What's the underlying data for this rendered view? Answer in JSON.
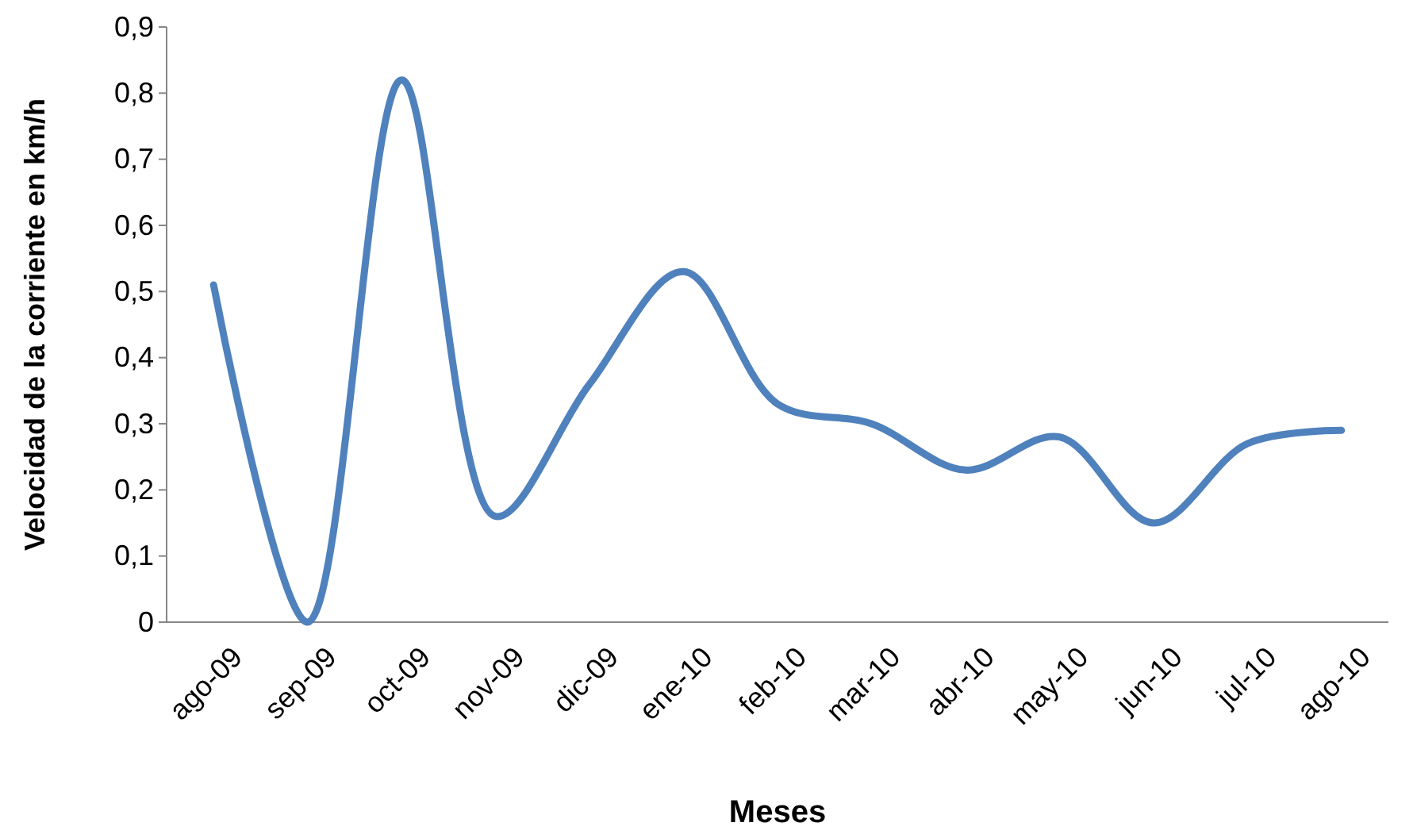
{
  "chart_data": {
    "type": "line",
    "xlabel": "Meses",
    "ylabel": "Velocidad de la corriente en km/h",
    "categories": [
      "ago-09",
      "sep-09",
      "oct-09",
      "nov-09",
      "dic-09",
      "ene-10",
      "feb-10",
      "mar-10",
      "abr-10",
      "may-10",
      "jun-10",
      "jul-10",
      "ago-10"
    ],
    "series": [
      {
        "color": "#4f81bd",
        "values": [
          0.51,
          0,
          0.82,
          0.16,
          0.36,
          0.53,
          0.33,
          0.3,
          0.23,
          0.28,
          0.15,
          0.27,
          0.29
        ]
      }
    ],
    "ylim": [
      0,
      0.9
    ],
    "yticks": [
      {
        "value": 0,
        "label": "0"
      },
      {
        "value": 0.1,
        "label": "0,1"
      },
      {
        "value": 0.2,
        "label": "0,2"
      },
      {
        "value": 0.3,
        "label": "0,3"
      },
      {
        "value": 0.4,
        "label": "0,4"
      },
      {
        "value": 0.5,
        "label": "0,5"
      },
      {
        "value": 0.6,
        "label": "0,6"
      },
      {
        "value": 0.7,
        "label": "0,7"
      },
      {
        "value": 0.8,
        "label": "0,8"
      },
      {
        "value": 0.9,
        "label": "0,9"
      }
    ],
    "grid": false,
    "marker": "none",
    "line_style": "solid"
  }
}
